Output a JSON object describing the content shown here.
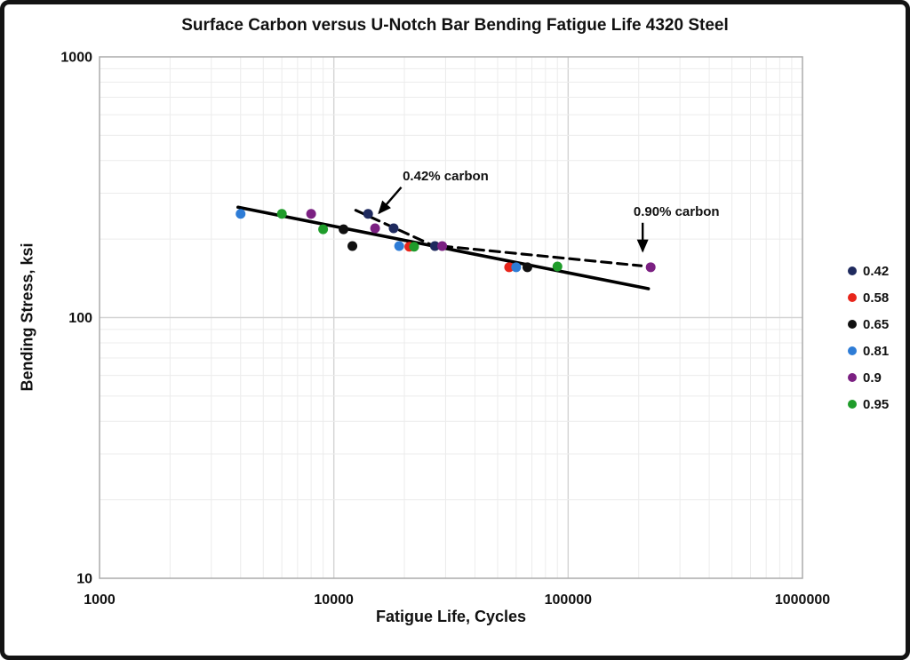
{
  "frame": {
    "app": "chart-image"
  },
  "chart_data": {
    "type": "scatter",
    "title": "Surface Carbon versus U-Notch Bar Bending Fatigue Life 4320 Steel",
    "xlabel": "Fatigue Life, Cycles",
    "ylabel": "Bending Stress, ksi",
    "x_scale": "log",
    "y_scale": "log",
    "xlim": [
      1000,
      1000000
    ],
    "ylim": [
      10,
      1000
    ],
    "x_ticks": [
      1000,
      10000,
      100000,
      1000000
    ],
    "x_tick_labels": [
      "1000",
      "10000",
      "100000",
      "1000000"
    ],
    "y_ticks": [
      10,
      100,
      1000
    ],
    "y_tick_labels": [
      "10",
      "100",
      "1000"
    ],
    "grid": "log major and minor, light gray",
    "legend_position": "right",
    "series": [
      {
        "name": "0.42",
        "color": "#1F2A5E",
        "points": [
          [
            14000,
            250
          ],
          [
            18000,
            220
          ],
          [
            27000,
            188
          ]
        ]
      },
      {
        "name": "0.58",
        "color": "#E8251B",
        "points": [
          [
            21000,
            187
          ],
          [
            56000,
            156
          ]
        ]
      },
      {
        "name": "0.65",
        "color": "#101010",
        "points": [
          [
            11000,
            218
          ],
          [
            12000,
            188
          ],
          [
            67000,
            156
          ]
        ]
      },
      {
        "name": "0.81",
        "color": "#2E7CD6",
        "points": [
          [
            4000,
            250
          ],
          [
            19000,
            188
          ],
          [
            60000,
            156
          ]
        ]
      },
      {
        "name": "0.9",
        "color": "#7B2082",
        "points": [
          [
            8000,
            250
          ],
          [
            15000,
            220
          ],
          [
            29000,
            188
          ],
          [
            225000,
            156
          ]
        ]
      },
      {
        "name": "0.95",
        "color": "#1F9C2A",
        "points": [
          [
            6000,
            250
          ],
          [
            9000,
            218
          ],
          [
            22000,
            187
          ],
          [
            90000,
            157
          ]
        ]
      }
    ],
    "lines": [
      {
        "name": "overall-trend",
        "style": "solid",
        "color": "#000000",
        "from": [
          3900,
          265
        ],
        "to": [
          220000,
          129
        ]
      },
      {
        "name": "trend-0.42-carbon",
        "style": "dashed",
        "color": "#000000",
        "from": [
          12400,
          258
        ],
        "to": [
          26800,
          188
        ]
      },
      {
        "name": "trend-0.90-carbon",
        "style": "dashed",
        "color": "#000000",
        "from": [
          29000,
          188
        ],
        "to": [
          205000,
          158
        ]
      }
    ],
    "annotations": [
      {
        "label": "0.42% carbon",
        "text_at": [
          30000,
          350
        ],
        "arrow_from": [
          19400,
          316
        ],
        "arrow_to": [
          15600,
          252
        ]
      },
      {
        "label": "0.90% carbon",
        "text_at": [
          290000,
          255
        ],
        "arrow_from": [
          208000,
          231
        ],
        "arrow_to": [
          208000,
          180
        ]
      }
    ]
  }
}
